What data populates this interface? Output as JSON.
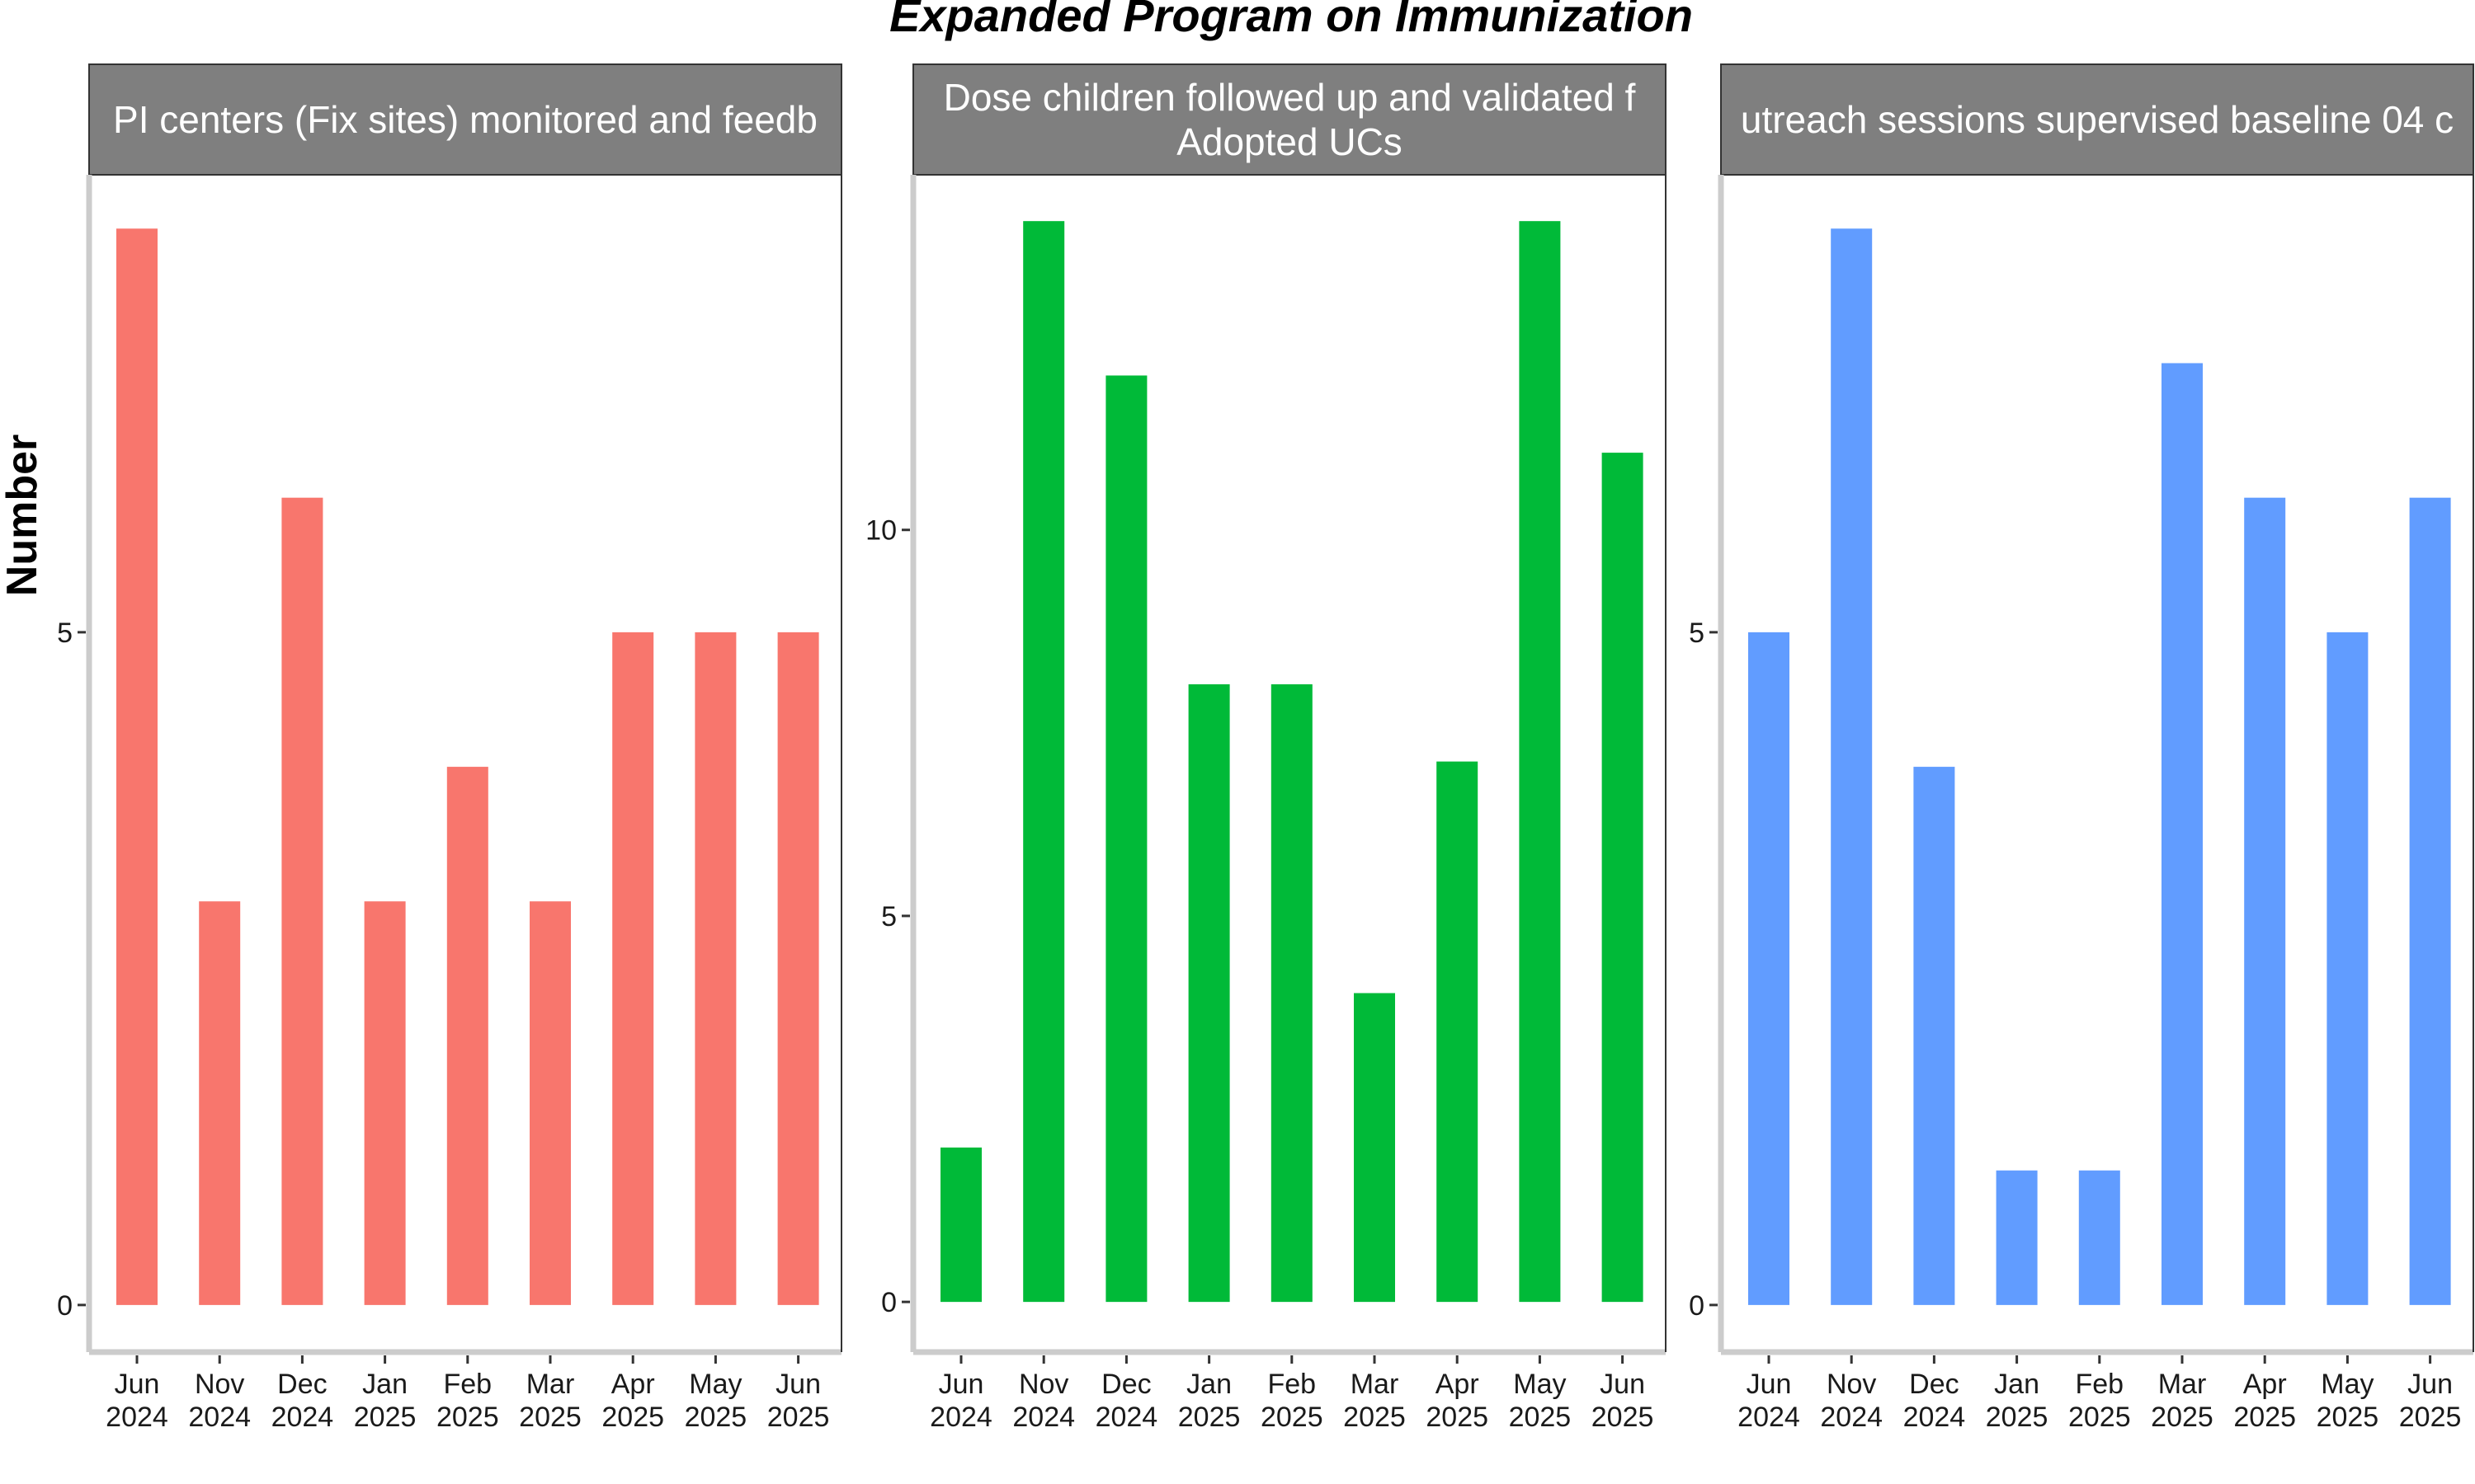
{
  "chart_data": {
    "type": "bar",
    "title": "Expanded Program on Immunization",
    "xlabel": "",
    "ylabel": "Number",
    "grid": false,
    "legend": "none",
    "categories": [
      [
        "Jun",
        "2024"
      ],
      [
        "Nov",
        "2024"
      ],
      [
        "Dec",
        "2024"
      ],
      [
        "Jan",
        "2025"
      ],
      [
        "Feb",
        "2025"
      ],
      [
        "Mar",
        "2025"
      ],
      [
        "Apr",
        "2025"
      ],
      [
        "May",
        "2025"
      ],
      [
        "Jun",
        "2025"
      ]
    ],
    "panels": [
      {
        "strip": [
          "PI centers (Fix sites) monitored and feedb"
        ],
        "color": "#F8766D",
        "ylim": [
          -0.35,
          8.4
        ],
        "yticks": [
          0,
          5
        ],
        "values": [
          8,
          3,
          6,
          3,
          4,
          3,
          5,
          5,
          5
        ]
      },
      {
        "strip": [
          "Dose children followed up and validated f",
          "Adopted UCs"
        ],
        "color": "#00BA38",
        "ylim": [
          -0.65,
          14.6
        ],
        "yticks": [
          0,
          5,
          10
        ],
        "values": [
          2,
          14,
          12,
          8,
          8,
          4,
          7,
          14,
          11
        ]
      },
      {
        "strip": [
          "utreach sessions supervised baseline 04 c"
        ],
        "color": "#619CFF",
        "ylim": [
          -0.35,
          8.4
        ],
        "yticks": [
          0,
          5
        ],
        "values": [
          5,
          8,
          4,
          1,
          1,
          7,
          6,
          5,
          6
        ]
      }
    ]
  }
}
